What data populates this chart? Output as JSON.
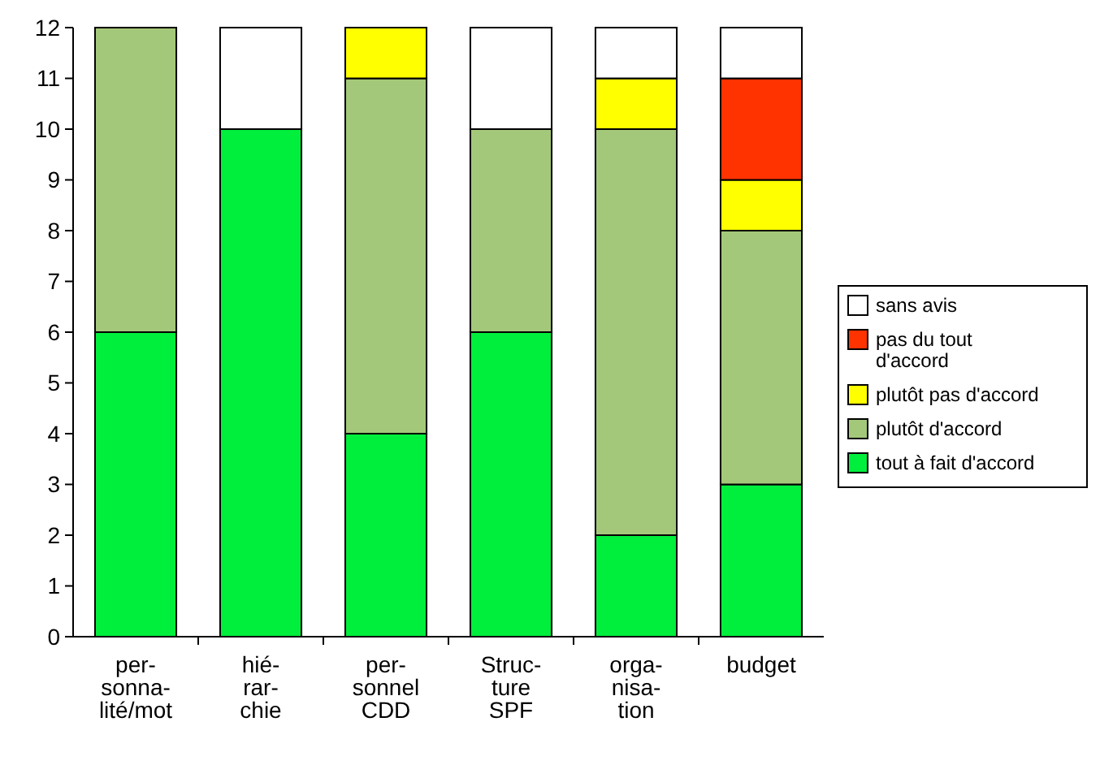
{
  "chart_data": {
    "type": "bar",
    "stacked": true,
    "categories": [
      "per-\nsonna-\nlité/mot",
      "hié-\nrar-\nchie",
      "per-\nsonnel\nCDD",
      "Struc-\nture\nSPF",
      "orga-\nnisa-\ntion",
      "budget"
    ],
    "series": [
      {
        "name": "tout à fait d'accord",
        "color": "#00ee3c",
        "values": [
          6,
          10,
          4,
          6,
          2,
          3
        ]
      },
      {
        "name": "plutôt d'accord",
        "color": "#a4c87a",
        "values": [
          6,
          0,
          7,
          4,
          8,
          5
        ]
      },
      {
        "name": "plutôt pas d'accord",
        "color": "#ffff00",
        "values": [
          0,
          0,
          1,
          0,
          1,
          1
        ]
      },
      {
        "name": "pas du tout\nd'accord",
        "color": "#ff3300",
        "values": [
          0,
          0,
          0,
          0,
          0,
          2
        ]
      },
      {
        "name": "sans avis",
        "color": "#ffffff",
        "values": [
          0,
          2,
          0,
          2,
          1,
          1
        ]
      }
    ],
    "ylim": [
      0,
      12
    ],
    "yticks": [
      0,
      1,
      2,
      3,
      4,
      5,
      6,
      7,
      8,
      9,
      10,
      11,
      12
    ],
    "grid": false,
    "legend": "right"
  }
}
